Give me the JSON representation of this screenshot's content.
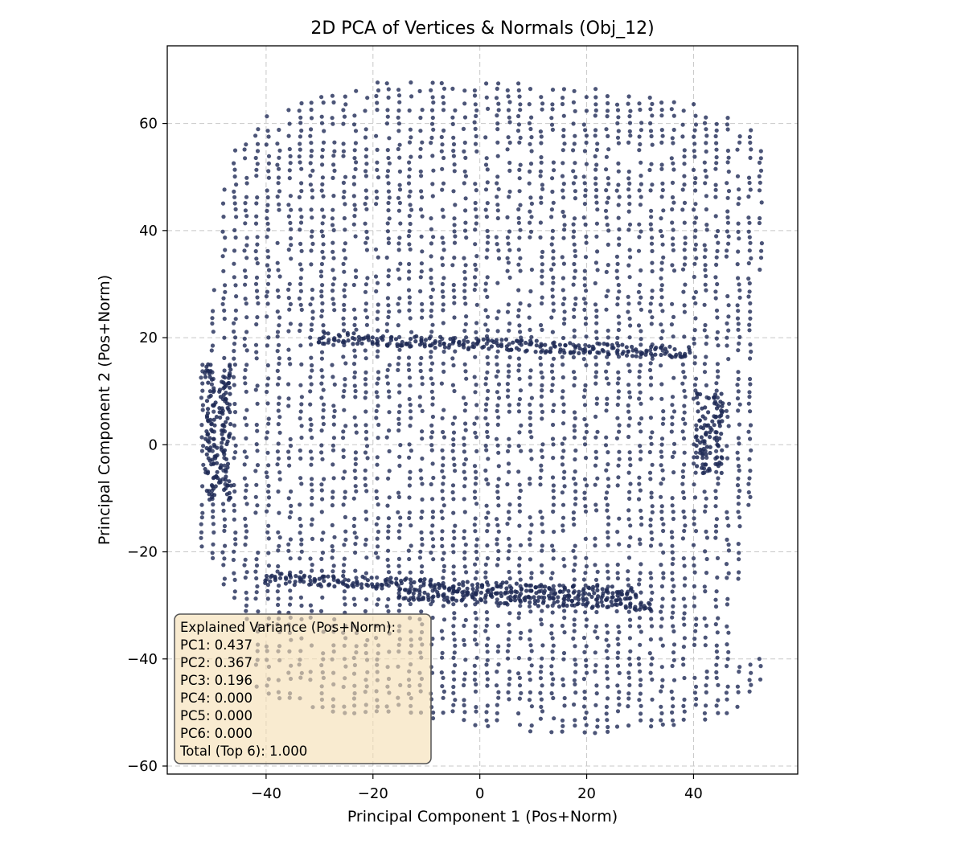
{
  "chart_data": {
    "type": "scatter",
    "title": "2D PCA of Vertices & Normals (Obj_12)",
    "xlabel": "Principal Component 1 (Pos+Norm)",
    "ylabel": "Principal Component 2 (Pos+Norm)",
    "xlim": [
      -58.5,
      59.5
    ],
    "ylim": [
      -61.5,
      74.5
    ],
    "xticks": [
      -40,
      -20,
      0,
      20,
      40
    ],
    "xtick_labels": [
      "−40",
      "−20",
      "0",
      "20",
      "40"
    ],
    "yticks": [
      -60,
      -40,
      -20,
      0,
      20,
      40,
      60
    ],
    "ytick_labels": [
      "−60",
      "−40",
      "−20",
      "0",
      "20",
      "40",
      "60"
    ],
    "grid": true,
    "point_color": "#1f2a56",
    "point_count_estimate": 9000,
    "series": [
      {
        "description_points": {
          "outline": [
            [
              -48,
              -26
            ],
            [
              -44,
              -33
            ],
            [
              -42,
              -46
            ],
            [
              -30,
              -50
            ],
            [
              -10,
              -51
            ],
            [
              10,
              -54
            ],
            [
              20,
              -55
            ],
            [
              30,
              -53
            ],
            [
              40,
              -52
            ],
            [
              47,
              -50
            ],
            [
              54,
              -45
            ],
            [
              52,
              -38
            ],
            [
              47,
              -38
            ],
            [
              48,
              -30
            ],
            [
              50,
              -15
            ],
            [
              52,
              0
            ],
            [
              52,
              20
            ],
            [
              53,
              40
            ],
            [
              53,
              55
            ],
            [
              50,
              60
            ],
            [
              40,
              64
            ],
            [
              20,
              67
            ],
            [
              0,
              68
            ],
            [
              -20,
              68
            ],
            [
              -40,
              62
            ],
            [
              -47,
              55
            ],
            [
              -49,
              40
            ],
            [
              -50,
              25
            ],
            [
              -53,
              12
            ],
            [
              -53,
              -5
            ],
            [
              -53,
              -18
            ]
          ],
          "bands": [
            {
              "y": -25,
              "x_from": -40,
              "x_to": 30
            },
            {
              "y": -28,
              "x_from": -15,
              "x_to": 32
            },
            {
              "y": 20,
              "x_from": -30,
              "x_to": 40
            }
          ],
          "dense_sides": [
            {
              "x": -49,
              "y_from": -10,
              "y_to": 15
            },
            {
              "x": 43,
              "y_from": -5,
              "y_to": 10
            }
          ]
        }
      }
    ],
    "legend_box": {
      "position": "lower-left",
      "lines": [
        "Explained Variance (Pos+Norm):",
        "PC1: 0.437",
        "PC2: 0.367",
        "PC3: 0.196",
        "PC4: 0.000",
        "PC5: 0.000",
        "PC6: 0.000",
        "Total (Top 6): 1.000"
      ],
      "background": "#f5deb3"
    }
  }
}
